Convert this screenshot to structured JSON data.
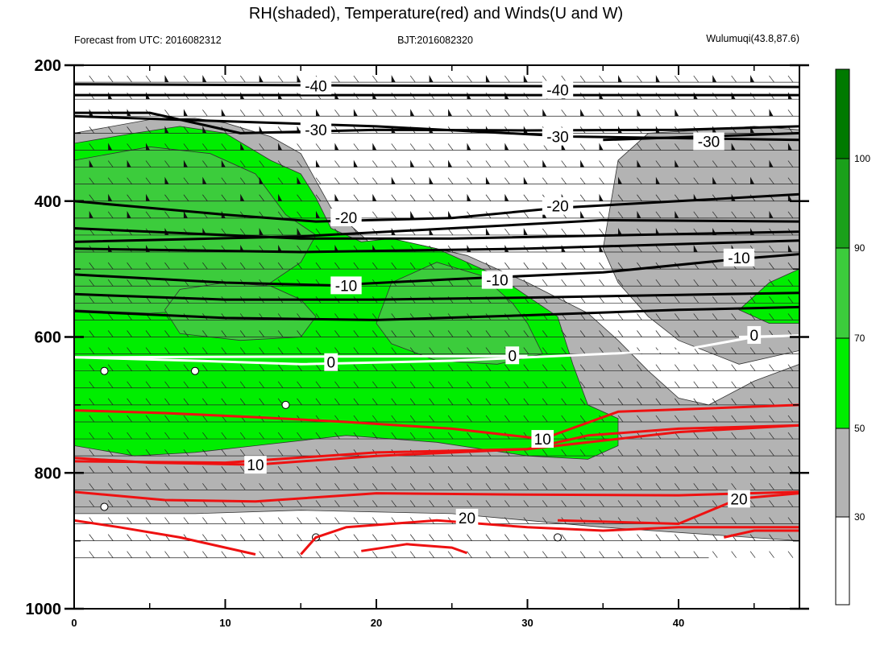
{
  "title": "RH(shaded), Temperature(red) and Winds(U and W)",
  "subtitle_left": "Forecast from UTC: 2016082312",
  "subtitle_center": "BJT:2016082320",
  "subtitle_right": "Wulumuqi(43.8,87.6)",
  "colors": {
    "rh_bins": [
      "#ffffff",
      "#b3b3b3",
      "#00ee00",
      "#3ccc3c",
      "#1aa01a",
      "#007a00"
    ],
    "temperature_warm": "#ee1111",
    "temperature_cold": "#000000",
    "zero_isotherm": "#ffffff"
  },
  "chart_data": {
    "type": "time-pressure cross section",
    "x": {
      "range": [
        0,
        48
      ],
      "ticks": [
        0,
        10,
        20,
        30,
        40
      ],
      "tick_labels": [
        "0",
        "10",
        "20",
        "30",
        "40"
      ]
    },
    "y": {
      "range": [
        200,
        1000
      ],
      "inverted": true,
      "ticks": [
        200,
        400,
        600,
        800,
        1000
      ],
      "tick_labels": [
        "200",
        "400",
        "600",
        "800",
        "1000"
      ]
    },
    "colorbar": {
      "levels": [
        30,
        50,
        70,
        90,
        100
      ],
      "labels": [
        "30",
        "50",
        "70",
        "90",
        "100"
      ]
    },
    "temperature_contours": [
      {
        "value": -40,
        "label": "-40",
        "label_pos": [
          16,
          230
        ],
        "points": [
          [
            0,
            228
          ],
          [
            20,
            230
          ],
          [
            48,
            232
          ]
        ]
      },
      {
        "value": -40,
        "label": "-40",
        "label_pos": [
          32,
          236
        ],
        "points": [
          [
            0,
            244
          ],
          [
            20,
            244
          ],
          [
            48,
            244
          ]
        ]
      },
      {
        "value": -30,
        "label": "-30",
        "label_pos": [
          16,
          295
        ],
        "points": [
          [
            0,
            270
          ],
          [
            5,
            270
          ],
          [
            11,
            300
          ],
          [
            20,
            295
          ],
          [
            30,
            296
          ],
          [
            40,
            295
          ],
          [
            48,
            290
          ]
        ]
      },
      {
        "value": -30,
        "label": "-30",
        "label_pos": [
          32,
          305
        ],
        "points": [
          [
            0,
            275
          ],
          [
            20,
            290
          ],
          [
            33,
            305
          ],
          [
            48,
            310
          ]
        ]
      },
      {
        "value": -30,
        "label": "-30",
        "label_pos": [
          42,
          312
        ],
        "points": [
          [
            35,
            310
          ],
          [
            48,
            300
          ]
        ]
      },
      {
        "value": -20,
        "label": "-20",
        "label_pos": [
          18,
          424
        ],
        "points": [
          [
            0,
            400
          ],
          [
            10,
            420
          ],
          [
            16,
            430
          ],
          [
            25,
            425
          ],
          [
            32,
            410
          ],
          [
            40,
            400
          ],
          [
            48,
            390
          ]
        ]
      },
      {
        "value": -20,
        "label": "-20",
        "label_pos": [
          32,
          407
        ],
        "points": [
          [
            0,
            460
          ],
          [
            15,
            452
          ],
          [
            25,
            440
          ],
          [
            35,
            428
          ],
          [
            48,
            430
          ]
        ]
      },
      {
        "value": -20,
        "label": "-20",
        "label_pos": null,
        "points": [
          [
            0,
            440
          ],
          [
            15,
            455
          ],
          [
            25,
            455
          ],
          [
            48,
            445
          ]
        ]
      },
      {
        "value": -20,
        "label": "-20",
        "label_pos": null,
        "points": [
          [
            0,
            470
          ],
          [
            15,
            475
          ],
          [
            30,
            470
          ],
          [
            48,
            458
          ]
        ]
      },
      {
        "value": -10,
        "label": "-10",
        "label_pos": [
          18,
          524
        ],
        "points": [
          [
            0,
            508
          ],
          [
            10,
            520
          ],
          [
            17,
            524
          ],
          [
            25,
            515
          ],
          [
            35,
            505
          ],
          [
            44,
            485
          ],
          [
            48,
            478
          ]
        ]
      },
      {
        "value": -10,
        "label": "-10",
        "label_pos": [
          28,
          516
        ],
        "points": [
          [
            0,
            537
          ],
          [
            10,
            545
          ],
          [
            20,
            545
          ],
          [
            30,
            542
          ],
          [
            40,
            538
          ],
          [
            48,
            535
          ]
        ]
      },
      {
        "value": -10,
        "label": "-10",
        "label_pos": [
          44,
          483
        ],
        "points": [
          [
            0,
            562
          ],
          [
            10,
            572
          ],
          [
            20,
            575
          ],
          [
            30,
            568
          ],
          [
            40,
            560
          ],
          [
            48,
            556
          ]
        ]
      },
      {
        "value": 0,
        "label": "0",
        "label_pos": [
          17,
          637
        ],
        "points": [
          [
            0,
            630
          ],
          [
            8,
            635
          ],
          [
            15,
            640
          ],
          [
            25,
            635
          ],
          [
            32,
            628
          ],
          [
            40,
            620
          ],
          [
            45,
            600
          ],
          [
            48,
            598
          ]
        ]
      },
      {
        "value": 0,
        "label": "0",
        "label_pos": [
          29,
          627
        ],
        "points": [
          [
            0,
            630
          ],
          [
            30,
            628
          ]
        ]
      },
      {
        "value": 0,
        "label": "0",
        "label_pos": [
          45,
          597
        ],
        "points": [
          [
            44,
            600
          ],
          [
            48,
            598
          ]
        ]
      },
      {
        "value": 10,
        "label": "10",
        "label_pos": [
          12,
          788
        ],
        "points": [
          [
            0,
            778
          ],
          [
            5,
            785
          ],
          [
            12,
            788
          ],
          [
            20,
            775
          ],
          [
            30,
            765
          ],
          [
            34,
            745
          ],
          [
            40,
            735
          ],
          [
            48,
            730
          ]
        ]
      },
      {
        "value": 10,
        "label": "10",
        "label_pos": [
          31,
          750
        ],
        "points": [
          [
            0,
            708
          ],
          [
            6,
            712
          ],
          [
            12,
            718
          ],
          [
            18,
            725
          ],
          [
            25,
            735
          ],
          [
            31,
            750
          ],
          [
            36,
            710
          ],
          [
            48,
            700
          ]
        ]
      },
      {
        "value": 10,
        "label": "10",
        "label_pos": null,
        "points": [
          [
            0,
            783
          ],
          [
            10,
            785
          ],
          [
            20,
            770
          ],
          [
            30,
            765
          ],
          [
            40,
            740
          ],
          [
            48,
            730
          ]
        ]
      },
      {
        "value": 20,
        "label": "20",
        "label_pos": [
          26,
          866
        ],
        "points": [
          [
            0,
            828
          ],
          [
            6,
            840
          ],
          [
            12,
            842
          ],
          [
            20,
            830
          ],
          [
            30,
            832
          ],
          [
            40,
            833
          ],
          [
            48,
            828
          ]
        ]
      },
      {
        "value": 20,
        "label": "20",
        "label_pos": [
          44,
          838
        ],
        "points": [
          [
            32,
            870
          ],
          [
            40,
            875
          ],
          [
            44,
            838
          ],
          [
            48,
            830
          ]
        ]
      },
      {
        "value": 20,
        "label": "20",
        "label_pos": null,
        "points": [
          [
            0,
            870
          ],
          [
            3,
            880
          ],
          [
            7,
            895
          ],
          [
            12,
            920
          ]
        ]
      },
      {
        "value": 20,
        "label": "20",
        "label_pos": null,
        "points": [
          [
            15,
            920
          ],
          [
            16,
            895
          ],
          [
            18,
            880
          ],
          [
            24,
            870
          ],
          [
            30,
            880
          ],
          [
            35,
            885
          ],
          [
            40,
            880
          ],
          [
            48,
            880
          ]
        ]
      },
      {
        "value": 20,
        "label": "20",
        "label_pos": null,
        "points": [
          [
            19,
            915
          ],
          [
            22,
            905
          ],
          [
            25,
            910
          ],
          [
            26,
            918
          ]
        ]
      },
      {
        "value": 20,
        "label": "20",
        "label_pos": null,
        "points": [
          [
            43,
            895
          ],
          [
            45,
            885
          ],
          [
            48,
            885
          ]
        ]
      }
    ],
    "rh_regions": [
      {
        "bin": "30-50",
        "points": [
          [
            0,
            300
          ],
          [
            5,
            280
          ],
          [
            8,
            278
          ],
          [
            10,
            285
          ],
          [
            13,
            305
          ],
          [
            15,
            330
          ],
          [
            16,
            370
          ],
          [
            17,
            410
          ],
          [
            20,
            470
          ],
          [
            23,
            465
          ],
          [
            26,
            480
          ],
          [
            30,
            520
          ],
          [
            34,
            565
          ],
          [
            36,
            605
          ],
          [
            38,
            650
          ],
          [
            40,
            690
          ],
          [
            42,
            700
          ],
          [
            45,
            665
          ],
          [
            48,
            640
          ],
          [
            48,
            900
          ],
          [
            35,
            880
          ],
          [
            25,
            860
          ],
          [
            15,
            855
          ],
          [
            8,
            860
          ],
          [
            0,
            860
          ]
        ]
      },
      {
        "bin": "30-50",
        "points": [
          [
            36,
            340
          ],
          [
            38,
            300
          ],
          [
            42,
            295
          ],
          [
            45,
            290
          ],
          [
            48,
            295
          ],
          [
            48,
            620
          ],
          [
            44,
            640
          ],
          [
            40,
            605
          ],
          [
            38,
            570
          ],
          [
            36,
            520
          ],
          [
            35,
            470
          ]
        ]
      },
      {
        "bin": "50-70",
        "points": [
          [
            0,
            315
          ],
          [
            4,
            300
          ],
          [
            7,
            290
          ],
          [
            10,
            300
          ],
          [
            13,
            340
          ],
          [
            15,
            360
          ],
          [
            16,
            395
          ],
          [
            17,
            440
          ],
          [
            19,
            460
          ],
          [
            21,
            455
          ],
          [
            24,
            470
          ],
          [
            28,
            510
          ],
          [
            32,
            570
          ],
          [
            33,
            640
          ],
          [
            34,
            700
          ],
          [
            36,
            720
          ],
          [
            36,
            760
          ],
          [
            34,
            780
          ],
          [
            30,
            775
          ],
          [
            24,
            755
          ],
          [
            18,
            745
          ],
          [
            12,
            760
          ],
          [
            8,
            770
          ],
          [
            4,
            775
          ],
          [
            0,
            760
          ]
        ]
      },
      {
        "bin": "50-70",
        "points": [
          [
            44,
            560
          ],
          [
            46,
            520
          ],
          [
            48,
            500
          ],
          [
            48,
            580
          ],
          [
            46,
            580
          ]
        ]
      },
      {
        "bin": "70-90",
        "points": [
          [
            0,
            340
          ],
          [
            5,
            320
          ],
          [
            9,
            330
          ],
          [
            12,
            360
          ],
          [
            14,
            420
          ],
          [
            16,
            450
          ],
          [
            15,
            490
          ],
          [
            13,
            520
          ],
          [
            11,
            545
          ],
          [
            9,
            560
          ],
          [
            5,
            565
          ],
          [
            0,
            560
          ]
        ]
      },
      {
        "bin": "70-90",
        "points": [
          [
            7,
            530
          ],
          [
            10,
            520
          ],
          [
            13,
            525
          ],
          [
            15,
            545
          ],
          [
            16,
            570
          ],
          [
            15,
            600
          ],
          [
            11,
            605
          ],
          [
            7,
            595
          ],
          [
            6,
            560
          ]
        ]
      },
      {
        "bin": "70-90",
        "points": [
          [
            21,
            520
          ],
          [
            24,
            490
          ],
          [
            27,
            510
          ],
          [
            29,
            550
          ],
          [
            30,
            580
          ],
          [
            31,
            625
          ],
          [
            28,
            640
          ],
          [
            24,
            635
          ],
          [
            21,
            610
          ],
          [
            20,
            580
          ]
        ]
      }
    ]
  }
}
